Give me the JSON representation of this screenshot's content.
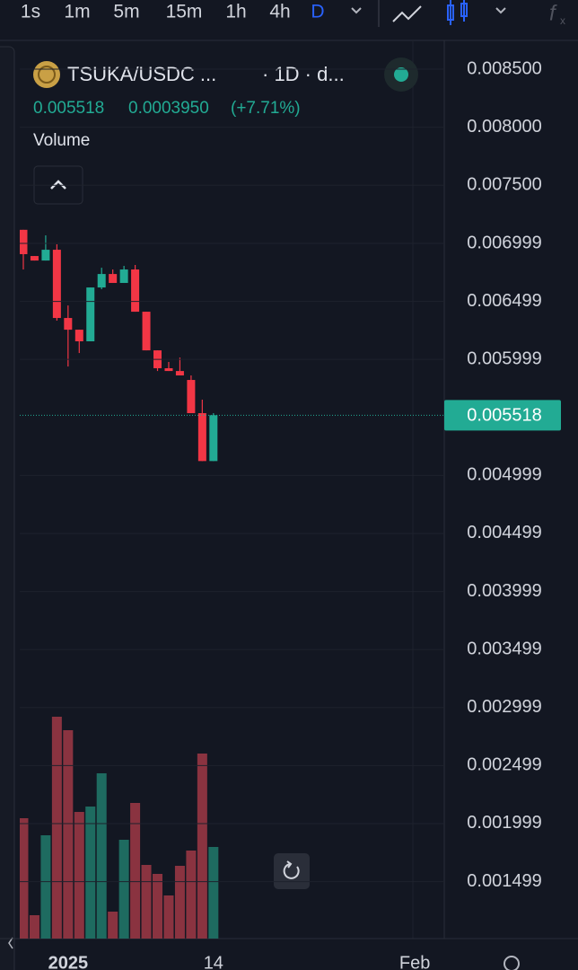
{
  "toolbar": {
    "intervals": [
      "1s",
      "1m",
      "5m",
      "15m",
      "1h",
      "4h",
      "D"
    ]
  },
  "legend": {
    "symbol": "TSUKA/USDC ...",
    "interval": "· 1D · d...",
    "price": "0.005518",
    "change": "0.0003950",
    "change_pct": "(+7.71%)",
    "indicator": "Volume"
  },
  "chart_data": {
    "type": "candlestick",
    "x": [
      0,
      1,
      2,
      3,
      4,
      5,
      6,
      7,
      8,
      9,
      10,
      11,
      12,
      13,
      14,
      15,
      16,
      17
    ],
    "open": [
      0.007116,
      0.00689,
      0.006851,
      0.006944,
      0.006356,
      0.006255,
      0.006155,
      0.006619,
      0.006735,
      0.006658,
      0.006774,
      0.00641,
      0.006077,
      0.005923,
      0.005899,
      0.005822,
      0.005536,
      0.005123
    ],
    "high": [
      0.007116,
      0.00689,
      0.007068,
      0.006991,
      0.006464,
      0.006255,
      0.006619,
      0.006789,
      0.006774,
      0.006805,
      0.006813,
      0.00641,
      0.006077,
      0.005977,
      0.006015,
      0.005861,
      0.005652,
      0.005536
    ],
    "low": [
      0.006774,
      0.006851,
      0.006851,
      0.006333,
      0.005938,
      0.006054,
      0.006155,
      0.006604,
      0.006658,
      0.006658,
      0.00641,
      0.006077,
      0.005899,
      0.005899,
      0.005861,
      0.005536,
      0.005123,
      0.005123
    ],
    "close": [
      0.006906,
      0.006851,
      0.006944,
      0.006356,
      0.006255,
      0.006155,
      0.006619,
      0.006735,
      0.006658,
      0.006774,
      0.00641,
      0.006077,
      0.005923,
      0.005899,
      0.005861,
      0.005536,
      0.005123,
      0.005518
    ],
    "volume": [
      134,
      26,
      115,
      247,
      232,
      141,
      147,
      184,
      30,
      110,
      151,
      82,
      72,
      48,
      81,
      98,
      206,
      102
    ],
    "up_color": "#22ab94",
    "down_color": "#f23645",
    "up_volume_color": "#1e6b60",
    "down_volume_color": "#8a3340",
    "xlim": [
      -0.32,
      37.64
    ],
    "xticks": [
      {
        "value": 4,
        "label": "2025"
      },
      {
        "value": 17,
        "label": "14"
      },
      {
        "value": 35,
        "label": "Feb"
      }
    ],
    "ylim": [
      0.001008,
      0.008748
    ],
    "yticks": [
      {
        "value": 0.0085,
        "label": "0.008500"
      },
      {
        "value": 0.008,
        "label": "0.008000"
      },
      {
        "value": 0.0075,
        "label": "0.007500"
      },
      {
        "value": 0.006999,
        "label": "0.006999"
      },
      {
        "value": 0.006499,
        "label": "0.006499"
      },
      {
        "value": 0.005999,
        "label": "0.005999"
      },
      {
        "value": 0.004999,
        "label": "0.004999"
      },
      {
        "value": 0.004499,
        "label": "0.004499"
      },
      {
        "value": 0.003999,
        "label": "0.003999"
      },
      {
        "value": 0.003499,
        "label": "0.003499"
      },
      {
        "value": 0.002999,
        "label": "0.002999"
      },
      {
        "value": 0.002499,
        "label": "0.002499"
      },
      {
        "value": 0.001999,
        "label": "0.001999"
      },
      {
        "value": 0.001499,
        "label": "0.001499"
      }
    ],
    "price_line": {
      "value": 0.005518,
      "label": "0.005518"
    },
    "grid": true
  }
}
